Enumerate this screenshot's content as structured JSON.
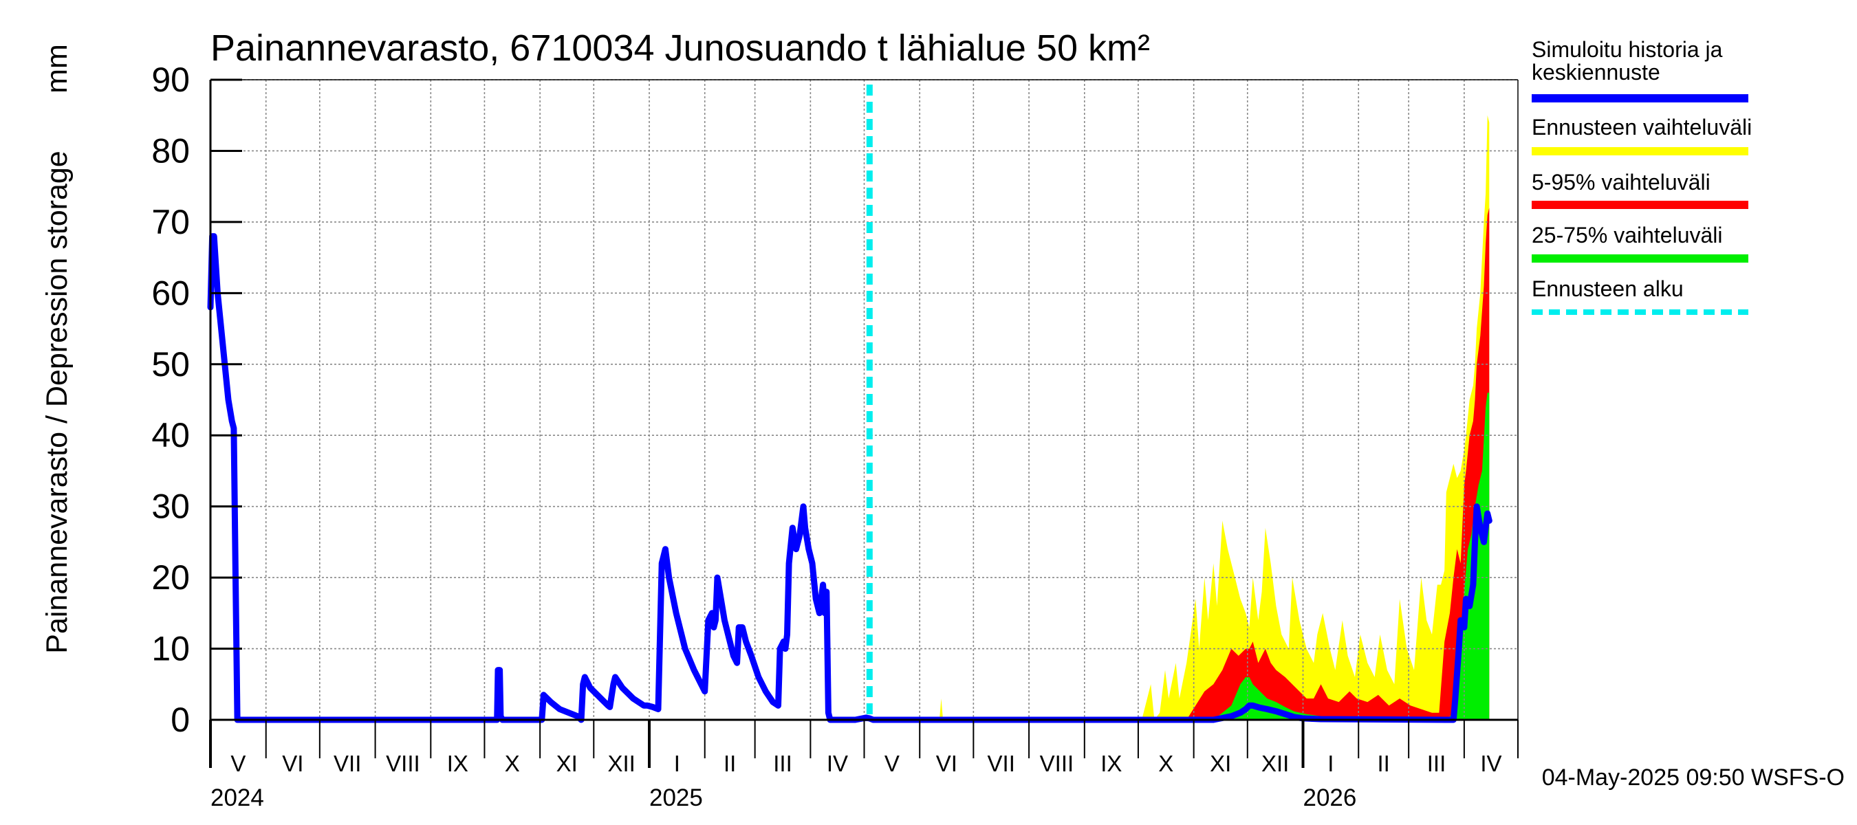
{
  "chart_data": {
    "type": "area",
    "title": "Painannevarasto, 6710034 Junosuando t lähialue 50 km²",
    "ylabel": "Painannevarasto / Depression storage",
    "yunit": "mm",
    "ylim": [
      0,
      90
    ],
    "yticks": [
      0,
      10,
      20,
      30,
      40,
      50,
      60,
      70,
      80,
      90
    ],
    "x_unit": "days since 2024-05-01",
    "xlim": [
      0,
      730
    ],
    "grid": true,
    "forecast_start_day": 368,
    "month_starts": [
      0,
      31,
      61,
      92,
      123,
      153,
      184,
      214,
      245,
      276,
      304,
      335,
      365,
      396,
      426,
      457,
      488,
      518,
      549,
      579,
      610,
      641,
      669,
      700,
      730
    ],
    "month_labels": [
      "V",
      "VI",
      "VII",
      "VIII",
      "IX",
      "X",
      "XI",
      "XII",
      "I",
      "II",
      "III",
      "IV",
      "V",
      "VI",
      "VII",
      "VIII",
      "IX",
      "X",
      "XI",
      "XII",
      "I",
      "II",
      "III",
      "IV"
    ],
    "year_labels": [
      {
        "day": 0,
        "label": "2024"
      },
      {
        "day": 245,
        "label": "2025"
      },
      {
        "day": 610,
        "label": "2026"
      }
    ],
    "legend": [
      {
        "label": "Simuloitu historia ja\nkeskiennuste",
        "color": "#0000ff",
        "style": "solid"
      },
      {
        "label": "Ennusteen vaihteluväli",
        "color": "#ffff00",
        "style": "solid"
      },
      {
        "label": "5-95% vaihteluväli",
        "color": "#ff0000",
        "style": "solid"
      },
      {
        "label": "25-75% vaihteluväli",
        "color": "#00ee00",
        "style": "solid"
      },
      {
        "label": "Ennusteen alku",
        "color": "#00eeee",
        "style": "dashed"
      }
    ],
    "series": [
      {
        "name": "Simuloitu historia ja keskiennuste",
        "color": "#0000ff",
        "points": [
          [
            0,
            58
          ],
          [
            1,
            68
          ],
          [
            2,
            68
          ],
          [
            4,
            60
          ],
          [
            6,
            55
          ],
          [
            8,
            50
          ],
          [
            10,
            45
          ],
          [
            12,
            42
          ],
          [
            13,
            41
          ],
          [
            14,
            20
          ],
          [
            15,
            0
          ],
          [
            160,
            0
          ],
          [
            160.5,
            7
          ],
          [
            161.5,
            7
          ],
          [
            162,
            0.5
          ],
          [
            163,
            0
          ],
          [
            185,
            0
          ],
          [
            186,
            3.5
          ],
          [
            190,
            2.5
          ],
          [
            195,
            1.5
          ],
          [
            205,
            0.5
          ],
          [
            207,
            0
          ],
          [
            208,
            5
          ],
          [
            209,
            6
          ],
          [
            212,
            4.5
          ],
          [
            218,
            3
          ],
          [
            222,
            2
          ],
          [
            223,
            1.8
          ],
          [
            225,
            5
          ],
          [
            226,
            6
          ],
          [
            230,
            4.5
          ],
          [
            236,
            3
          ],
          [
            242,
            2
          ],
          [
            244,
            2
          ],
          [
            247,
            1.8
          ],
          [
            250,
            1.5
          ],
          [
            252,
            22
          ],
          [
            254,
            24
          ],
          [
            256,
            20
          ],
          [
            260,
            15
          ],
          [
            265,
            10
          ],
          [
            270,
            7
          ],
          [
            274,
            5
          ],
          [
            276,
            4
          ],
          [
            278,
            14
          ],
          [
            280,
            15
          ],
          [
            281,
            13
          ],
          [
            282,
            14
          ],
          [
            283,
            20
          ],
          [
            285,
            17
          ],
          [
            287,
            14
          ],
          [
            290,
            11
          ],
          [
            292,
            9
          ],
          [
            294,
            8
          ],
          [
            295,
            13
          ],
          [
            297,
            13
          ],
          [
            299,
            11
          ],
          [
            302,
            9
          ],
          [
            306,
            6
          ],
          [
            310,
            4
          ],
          [
            314,
            2.5
          ],
          [
            317,
            2
          ],
          [
            318,
            10
          ],
          [
            320,
            11
          ],
          [
            321,
            10
          ],
          [
            322,
            12
          ],
          [
            323,
            22
          ],
          [
            325,
            27
          ],
          [
            327,
            24
          ],
          [
            329,
            26
          ],
          [
            331,
            30
          ],
          [
            332,
            27
          ],
          [
            334,
            24
          ],
          [
            336,
            22
          ],
          [
            338,
            17
          ],
          [
            340,
            15
          ],
          [
            342,
            19
          ],
          [
            343,
            15
          ],
          [
            344,
            18
          ],
          [
            345,
            1
          ],
          [
            346,
            0
          ],
          [
            360,
            0
          ],
          [
            366,
            0.3
          ],
          [
            368,
            0.2
          ],
          [
            370,
            0
          ],
          [
            560,
            0
          ],
          [
            570,
            0.5
          ],
          [
            575,
            1
          ],
          [
            578,
            1.5
          ],
          [
            580,
            2
          ],
          [
            582,
            2
          ],
          [
            586,
            1.7
          ],
          [
            590,
            1.5
          ],
          [
            595,
            1.2
          ],
          [
            600,
            0.8
          ],
          [
            605,
            0.4
          ],
          [
            610,
            0.2
          ],
          [
            620,
            0.1
          ],
          [
            690,
            0
          ],
          [
            694,
            0
          ],
          [
            695,
            3
          ],
          [
            697,
            10
          ],
          [
            698,
            14
          ],
          [
            700,
            13
          ],
          [
            701,
            17
          ],
          [
            703,
            16
          ],
          [
            705,
            19
          ],
          [
            706,
            25
          ],
          [
            707,
            30
          ],
          [
            709,
            27
          ],
          [
            711,
            25
          ],
          [
            713,
            29
          ],
          [
            714,
            28
          ]
        ]
      },
      {
        "name": "Ennusteen vaihteluväli",
        "color": "#ffff00",
        "upper": [
          [
            368,
            0
          ],
          [
            407,
            0
          ],
          [
            408,
            3
          ],
          [
            409,
            0
          ],
          [
            500,
            0
          ],
          [
            520,
            0
          ],
          [
            525,
            5
          ],
          [
            527,
            0
          ],
          [
            530,
            1
          ],
          [
            533,
            7
          ],
          [
            535,
            3
          ],
          [
            539,
            8
          ],
          [
            541,
            3
          ],
          [
            545,
            8
          ],
          [
            550,
            17
          ],
          [
            552,
            10
          ],
          [
            555,
            20
          ],
          [
            557,
            14
          ],
          [
            560,
            22
          ],
          [
            562,
            16
          ],
          [
            565,
            28
          ],
          [
            568,
            24
          ],
          [
            572,
            20
          ],
          [
            575,
            17
          ],
          [
            578,
            15
          ],
          [
            580,
            13
          ],
          [
            582,
            20
          ],
          [
            585,
            14
          ],
          [
            587,
            18
          ],
          [
            589,
            27
          ],
          [
            592,
            22
          ],
          [
            595,
            16
          ],
          [
            598,
            12
          ],
          [
            602,
            10
          ],
          [
            604,
            20
          ],
          [
            608,
            14
          ],
          [
            612,
            10
          ],
          [
            616,
            8
          ],
          [
            618,
            12
          ],
          [
            621,
            15
          ],
          [
            625,
            10
          ],
          [
            628,
            7
          ],
          [
            632,
            14
          ],
          [
            635,
            9
          ],
          [
            639,
            6
          ],
          [
            642,
            12
          ],
          [
            646,
            8
          ],
          [
            650,
            6
          ],
          [
            653,
            12
          ],
          [
            657,
            7
          ],
          [
            661,
            5
          ],
          [
            664,
            17
          ],
          [
            668,
            10
          ],
          [
            672,
            7
          ],
          [
            676,
            20
          ],
          [
            679,
            14
          ],
          [
            682,
            12
          ],
          [
            685,
            19
          ],
          [
            687,
            19
          ],
          [
            689,
            21
          ],
          [
            690,
            32
          ],
          [
            694,
            36
          ],
          [
            696,
            34
          ],
          [
            698,
            35
          ],
          [
            700,
            38
          ],
          [
            701,
            40
          ],
          [
            703,
            45
          ],
          [
            705,
            47
          ],
          [
            706,
            50
          ],
          [
            707,
            55
          ],
          [
            709,
            60
          ],
          [
            710,
            65
          ],
          [
            711,
            70
          ],
          [
            712,
            74
          ],
          [
            713,
            85
          ],
          [
            714,
            84
          ]
        ],
        "lower": [
          [
            368,
            0
          ],
          [
            714,
            0
          ]
        ]
      },
      {
        "name": "5-95% vaihteluväli",
        "color": "#ff0000",
        "upper": [
          [
            368,
            0
          ],
          [
            545,
            0
          ],
          [
            550,
            2
          ],
          [
            555,
            4
          ],
          [
            560,
            5
          ],
          [
            565,
            7
          ],
          [
            570,
            10
          ],
          [
            574,
            9
          ],
          [
            578,
            10
          ],
          [
            580,
            10
          ],
          [
            582,
            11
          ],
          [
            585,
            8
          ],
          [
            589,
            10
          ],
          [
            592,
            8
          ],
          [
            595,
            7
          ],
          [
            600,
            6
          ],
          [
            604,
            5
          ],
          [
            608,
            4
          ],
          [
            612,
            3
          ],
          [
            616,
            3
          ],
          [
            620,
            5
          ],
          [
            624,
            3
          ],
          [
            630,
            2.5
          ],
          [
            636,
            4
          ],
          [
            640,
            3
          ],
          [
            646,
            2.5
          ],
          [
            652,
            3.5
          ],
          [
            658,
            2
          ],
          [
            664,
            3
          ],
          [
            670,
            2
          ],
          [
            676,
            1.5
          ],
          [
            682,
            1
          ],
          [
            686,
            1
          ],
          [
            689,
            11
          ],
          [
            692,
            15
          ],
          [
            694,
            20
          ],
          [
            696,
            24
          ],
          [
            698,
            22
          ],
          [
            700,
            33
          ],
          [
            701,
            35
          ],
          [
            703,
            40
          ],
          [
            705,
            42
          ],
          [
            706,
            45
          ],
          [
            707,
            50
          ],
          [
            709,
            54
          ],
          [
            711,
            61
          ],
          [
            712,
            67
          ],
          [
            713,
            71
          ],
          [
            714,
            72
          ]
        ],
        "lower": [
          [
            368,
            0
          ],
          [
            714,
            0
          ]
        ]
      },
      {
        "name": "25-75% vaihteluväli",
        "color": "#00ee00",
        "upper": [
          [
            368,
            0
          ],
          [
            560,
            0
          ],
          [
            565,
            1
          ],
          [
            570,
            2
          ],
          [
            575,
            5
          ],
          [
            578,
            6
          ],
          [
            580,
            6
          ],
          [
            582,
            5
          ],
          [
            586,
            4
          ],
          [
            590,
            3
          ],
          [
            595,
            2.5
          ],
          [
            600,
            1.8
          ],
          [
            605,
            1.2
          ],
          [
            612,
            0.8
          ],
          [
            620,
            0.5
          ],
          [
            630,
            0.3
          ],
          [
            650,
            0.2
          ],
          [
            690,
            0
          ],
          [
            694,
            1
          ],
          [
            696,
            5
          ],
          [
            698,
            10
          ],
          [
            700,
            18
          ],
          [
            702,
            24
          ],
          [
            704,
            26
          ],
          [
            706,
            30
          ],
          [
            708,
            33
          ],
          [
            710,
            35
          ],
          [
            712,
            44
          ],
          [
            713,
            46
          ],
          [
            714,
            46
          ]
        ],
        "lower": [
          [
            368,
            0
          ],
          [
            714,
            0
          ]
        ]
      }
    ]
  },
  "footer": {
    "timestamp": "04-May-2025 09:50 WSFS-O"
  }
}
